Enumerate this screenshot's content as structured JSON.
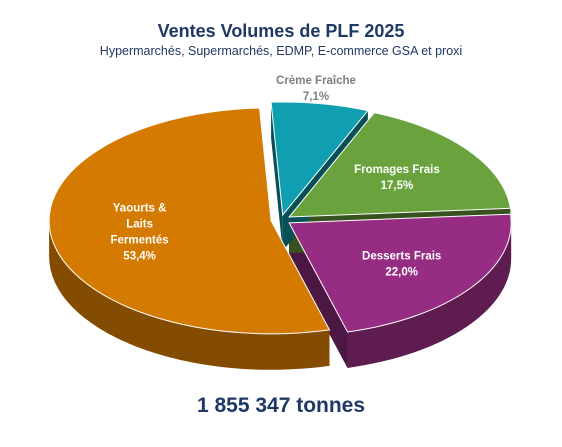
{
  "chart_data": {
    "type": "pie",
    "title": "Ventes Volumes de PLF 2025",
    "subtitle": "Hypermarchés, Supermarchés, EDMP, E-commerce GSA et proxi",
    "total_label": "1 855 347 tonnes",
    "slices": [
      {
        "name": "Crème Fraîche",
        "value": 7.1,
        "label": "7,1%",
        "color": "#0f9fb0",
        "label_color": "#7f7f7f"
      },
      {
        "name": "Fromages Frais",
        "value": 17.5,
        "label": "17,5%",
        "color": "#6aa33d",
        "label_color": "#ffffff"
      },
      {
        "name": "Desserts Frais",
        "value": 22.0,
        "label": "22,0%",
        "color": "#972d83",
        "label_color": "#ffffff"
      },
      {
        "name": "Yaourts & Laits Fermentés",
        "value": 53.4,
        "label": "53,4%",
        "color": "#d47a00",
        "label_color": "#ffffff"
      }
    ]
  }
}
